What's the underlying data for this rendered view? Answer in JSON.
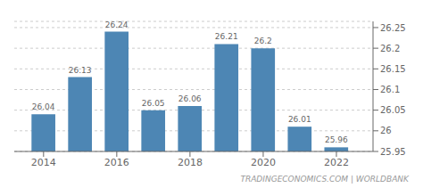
{
  "chart_data": {
    "type": "bar",
    "x": [
      2014,
      2015,
      2016,
      2017,
      2018,
      2019,
      2020,
      2021,
      2022
    ],
    "values": [
      26.04,
      26.13,
      26.24,
      26.05,
      26.06,
      26.21,
      26.2,
      26.01,
      25.96
    ],
    "color": "#4d86b4",
    "xlim": [
      2013.2,
      2023.0
    ],
    "xticks": [
      2014,
      2016,
      2018,
      2020,
      2022
    ],
    "ylim": [
      25.95,
      26.265
    ],
    "yticks": [
      25.95,
      26.0,
      26.05,
      26.1,
      26.15,
      26.2,
      26.25
    ],
    "grid": true,
    "data_labels": true,
    "annotations": [
      "TRADINGECONOMICS.COM | WORLDBANK"
    ]
  }
}
